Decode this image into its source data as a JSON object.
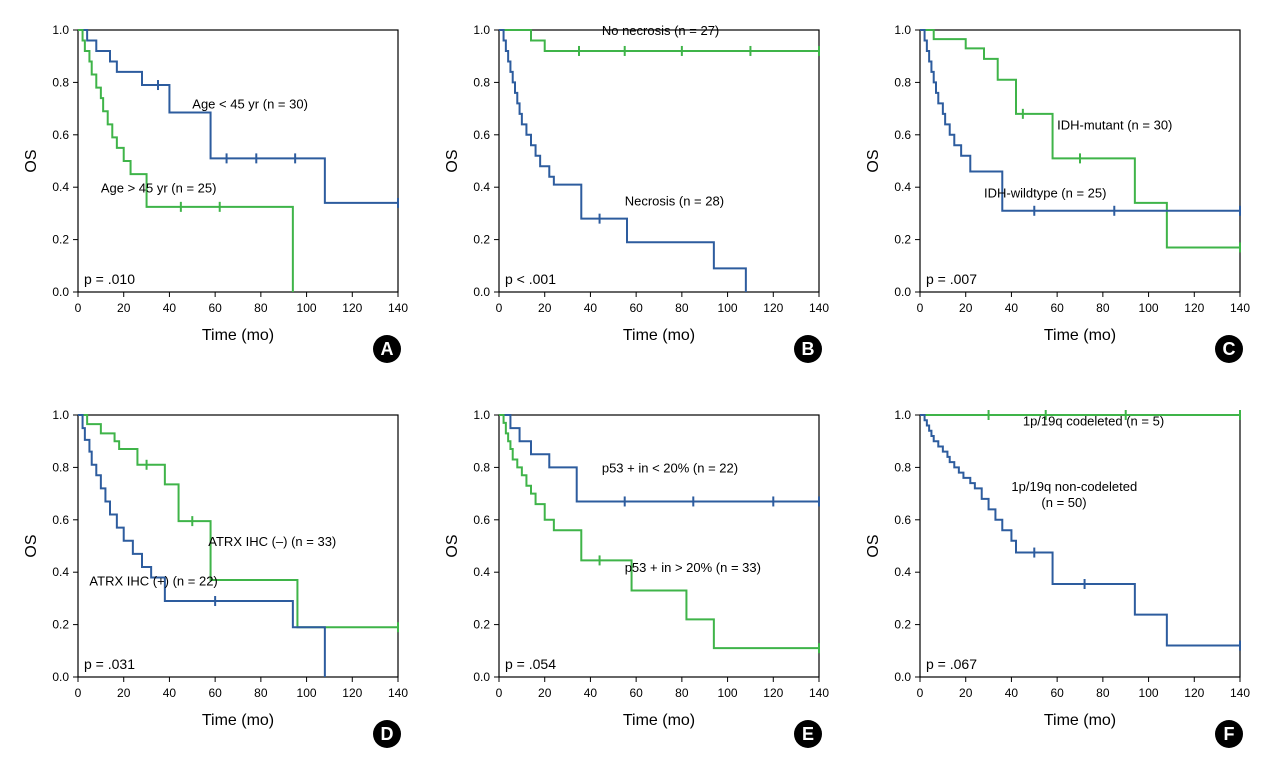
{
  "global": {
    "ylabel": "OS",
    "xlabel": "Time (mo)",
    "ylim": [
      0,
      1.0
    ],
    "ytick_step": 0.2,
    "plot_bg": "#ffffff",
    "axis_color": "#000000",
    "border_color": "#000000",
    "font_size_axis": 14,
    "font_size_tick": 12,
    "font_size_label": 13,
    "font_size_pvalue": 14,
    "line_width": 2,
    "colors": {
      "blue": "#2d5c9e",
      "green": "#3fb449"
    }
  },
  "panels": [
    {
      "id": "A",
      "xlim": [
        0,
        140
      ],
      "xtick_step": 20,
      "pvalue": "p = .010",
      "series": [
        {
          "label": "Age < 45 yr (n = 30)",
          "color": "#2d5c9e",
          "label_x": 50,
          "label_y": 0.7,
          "points": [
            [
              0,
              1.0
            ],
            [
              3,
              1.0
            ],
            [
              4,
              0.96
            ],
            [
              7,
              0.96
            ],
            [
              8,
              0.92
            ],
            [
              12,
              0.92
            ],
            [
              14,
              0.88
            ],
            [
              16,
              0.88
            ],
            [
              17,
              0.84
            ],
            [
              25,
              0.84
            ],
            [
              28,
              0.79
            ],
            [
              38,
              0.79
            ],
            [
              40,
              0.685
            ],
            [
              55,
              0.685
            ],
            [
              58,
              0.51
            ],
            [
              106,
              0.51
            ],
            [
              108,
              0.34
            ],
            [
              140,
              0.34
            ]
          ],
          "censors": [
            [
              35,
              0.79
            ],
            [
              65,
              0.51
            ],
            [
              78,
              0.51
            ],
            [
              95,
              0.51
            ],
            [
              140,
              0.34
            ]
          ]
        },
        {
          "label": "Age > 45 yr (n = 25)",
          "color": "#3fb449",
          "label_x": 10,
          "label_y": 0.38,
          "points": [
            [
              0,
              1.0
            ],
            [
              2,
              0.96
            ],
            [
              3,
              0.92
            ],
            [
              5,
              0.88
            ],
            [
              6,
              0.83
            ],
            [
              8,
              0.78
            ],
            [
              10,
              0.74
            ],
            [
              11,
              0.69
            ],
            [
              13,
              0.64
            ],
            [
              15,
              0.59
            ],
            [
              17,
              0.55
            ],
            [
              20,
              0.5
            ],
            [
              23,
              0.45
            ],
            [
              28,
              0.45
            ],
            [
              30,
              0.325
            ],
            [
              92,
              0.325
            ],
            [
              94,
              0.0
            ]
          ],
          "censors": [
            [
              45,
              0.325
            ],
            [
              62,
              0.325
            ]
          ]
        }
      ]
    },
    {
      "id": "B",
      "xlim": [
        0,
        140
      ],
      "xtick_step": 20,
      "pvalue": "p < .001",
      "series": [
        {
          "label": "No necrosis (n = 27)",
          "color": "#3fb449",
          "label_x": 45,
          "label_y": 0.98,
          "points": [
            [
              0,
              1.0
            ],
            [
              12,
              1.0
            ],
            [
              14,
              0.96
            ],
            [
              18,
              0.96
            ],
            [
              20,
              0.92
            ],
            [
              140,
              0.92
            ]
          ],
          "censors": [
            [
              35,
              0.92
            ],
            [
              55,
              0.92
            ],
            [
              80,
              0.92
            ],
            [
              110,
              0.92
            ],
            [
              140,
              0.92
            ]
          ]
        },
        {
          "label": "Necrosis (n = 28)",
          "color": "#2d5c9e",
          "label_x": 55,
          "label_y": 0.33,
          "points": [
            [
              0,
              1.0
            ],
            [
              2,
              0.96
            ],
            [
              3,
              0.92
            ],
            [
              4,
              0.88
            ],
            [
              5,
              0.84
            ],
            [
              6,
              0.8
            ],
            [
              7,
              0.76
            ],
            [
              8,
              0.72
            ],
            [
              9,
              0.68
            ],
            [
              10,
              0.64
            ],
            [
              12,
              0.6
            ],
            [
              14,
              0.56
            ],
            [
              16,
              0.52
            ],
            [
              18,
              0.48
            ],
            [
              22,
              0.44
            ],
            [
              24,
              0.41
            ],
            [
              32,
              0.41
            ],
            [
              36,
              0.28
            ],
            [
              55,
              0.28
            ],
            [
              56,
              0.19
            ],
            [
              92,
              0.19
            ],
            [
              94,
              0.09
            ],
            [
              106,
              0.09
            ],
            [
              108,
              0.0
            ]
          ],
          "censors": [
            [
              44,
              0.28
            ]
          ]
        }
      ]
    },
    {
      "id": "C",
      "xlim": [
        0,
        140
      ],
      "xtick_step": 20,
      "pvalue": "p = .007",
      "series": [
        {
          "label": "IDH-mutant (n = 30)",
          "color": "#3fb449",
          "label_x": 60,
          "label_y": 0.62,
          "points": [
            [
              0,
              1.0
            ],
            [
              4,
              1.0
            ],
            [
              6,
              0.965
            ],
            [
              18,
              0.965
            ],
            [
              20,
              0.93
            ],
            [
              26,
              0.93
            ],
            [
              28,
              0.89
            ],
            [
              32,
              0.89
            ],
            [
              34,
              0.81
            ],
            [
              40,
              0.81
            ],
            [
              42,
              0.68
            ],
            [
              56,
              0.68
            ],
            [
              58,
              0.51
            ],
            [
              92,
              0.51
            ],
            [
              94,
              0.34
            ],
            [
              106,
              0.34
            ],
            [
              108,
              0.17
            ],
            [
              140,
              0.17
            ]
          ],
          "censors": [
            [
              45,
              0.68
            ],
            [
              70,
              0.51
            ],
            [
              140,
              0.17
            ]
          ]
        },
        {
          "label": "IDH-wildtype (n = 25)",
          "color": "#2d5c9e",
          "label_x": 28,
          "label_y": 0.36,
          "points": [
            [
              0,
              1.0
            ],
            [
              2,
              0.96
            ],
            [
              3,
              0.92
            ],
            [
              4,
              0.88
            ],
            [
              5,
              0.84
            ],
            [
              6,
              0.8
            ],
            [
              7,
              0.76
            ],
            [
              8,
              0.72
            ],
            [
              10,
              0.68
            ],
            [
              11,
              0.64
            ],
            [
              13,
              0.6
            ],
            [
              15,
              0.56
            ],
            [
              18,
              0.52
            ],
            [
              22,
              0.46
            ],
            [
              32,
              0.46
            ],
            [
              36,
              0.31
            ],
            [
              140,
              0.31
            ]
          ],
          "censors": [
            [
              50,
              0.31
            ],
            [
              85,
              0.31
            ],
            [
              140,
              0.31
            ]
          ]
        }
      ]
    },
    {
      "id": "D",
      "xlim": [
        0,
        140
      ],
      "xtick_step": 20,
      "pvalue": "p = .031",
      "series": [
        {
          "label": "ATRX IHC (–) (n = 33)",
          "color": "#3fb449",
          "label_x": 57,
          "label_y": 0.5,
          "points": [
            [
              0,
              1.0
            ],
            [
              3,
              1.0
            ],
            [
              4,
              0.965
            ],
            [
              8,
              0.965
            ],
            [
              10,
              0.93
            ],
            [
              14,
              0.93
            ],
            [
              16,
              0.9
            ],
            [
              18,
              0.87
            ],
            [
              24,
              0.87
            ],
            [
              26,
              0.81
            ],
            [
              36,
              0.81
            ],
            [
              38,
              0.735
            ],
            [
              42,
              0.735
            ],
            [
              44,
              0.595
            ],
            [
              56,
              0.595
            ],
            [
              58,
              0.37
            ],
            [
              94,
              0.37
            ],
            [
              96,
              0.19
            ],
            [
              140,
              0.19
            ]
          ],
          "censors": [
            [
              30,
              0.81
            ],
            [
              50,
              0.595
            ],
            [
              140,
              0.19
            ]
          ]
        },
        {
          "label": "ATRX IHC (+) (n = 22)",
          "color": "#2d5c9e",
          "label_x": 5,
          "label_y": 0.35,
          "points": [
            [
              0,
              1.0
            ],
            [
              2,
              0.95
            ],
            [
              3,
              0.905
            ],
            [
              5,
              0.86
            ],
            [
              6,
              0.81
            ],
            [
              8,
              0.77
            ],
            [
              10,
              0.72
            ],
            [
              12,
              0.67
            ],
            [
              14,
              0.62
            ],
            [
              17,
              0.57
            ],
            [
              20,
              0.52
            ],
            [
              24,
              0.47
            ],
            [
              28,
              0.42
            ],
            [
              32,
              0.38
            ],
            [
              36,
              0.38
            ],
            [
              38,
              0.29
            ],
            [
              92,
              0.29
            ],
            [
              94,
              0.19
            ],
            [
              106,
              0.19
            ],
            [
              108,
              0.0
            ]
          ],
          "censors": [
            [
              60,
              0.29
            ]
          ]
        }
      ]
    },
    {
      "id": "E",
      "xlim": [
        0,
        140
      ],
      "xtick_step": 20,
      "pvalue": "p = .054",
      "series": [
        {
          "label": "p53 + in < 20% (n = 22)",
          "color": "#2d5c9e",
          "label_x": 45,
          "label_y": 0.78,
          "points": [
            [
              0,
              1.0
            ],
            [
              4,
              1.0
            ],
            [
              5,
              0.95
            ],
            [
              8,
              0.95
            ],
            [
              9,
              0.9
            ],
            [
              13,
              0.9
            ],
            [
              14,
              0.85
            ],
            [
              20,
              0.85
            ],
            [
              22,
              0.8
            ],
            [
              32,
              0.8
            ],
            [
              34,
              0.67
            ],
            [
              140,
              0.67
            ]
          ],
          "censors": [
            [
              55,
              0.67
            ],
            [
              85,
              0.67
            ],
            [
              120,
              0.67
            ],
            [
              140,
              0.67
            ]
          ]
        },
        {
          "label": "p53 + in > 20% (n = 33)",
          "color": "#3fb449",
          "label_x": 55,
          "label_y": 0.4,
          "points": [
            [
              0,
              1.0
            ],
            [
              2,
              0.97
            ],
            [
              3,
              0.93
            ],
            [
              4,
              0.9
            ],
            [
              5,
              0.87
            ],
            [
              6,
              0.83
            ],
            [
              8,
              0.8
            ],
            [
              10,
              0.77
            ],
            [
              12,
              0.73
            ],
            [
              14,
              0.7
            ],
            [
              16,
              0.66
            ],
            [
              20,
              0.6
            ],
            [
              24,
              0.56
            ],
            [
              34,
              0.56
            ],
            [
              36,
              0.445
            ],
            [
              56,
              0.445
            ],
            [
              58,
              0.33
            ],
            [
              80,
              0.33
            ],
            [
              82,
              0.22
            ],
            [
              92,
              0.22
            ],
            [
              94,
              0.11
            ],
            [
              140,
              0.11
            ]
          ],
          "censors": [
            [
              44,
              0.445
            ],
            [
              140,
              0.11
            ]
          ]
        }
      ]
    },
    {
      "id": "F",
      "xlim": [
        0,
        140
      ],
      "xtick_step": 20,
      "pvalue": "p = .067",
      "series": [
        {
          "label": "1p/19q codeleted (n = 5)",
          "color": "#3fb449",
          "label_x": 45,
          "label_y": 0.96,
          "points": [
            [
              0,
              1.0
            ],
            [
              140,
              1.0
            ]
          ],
          "censors": [
            [
              30,
              1.0
            ],
            [
              55,
              1.0
            ],
            [
              90,
              1.0
            ],
            [
              140,
              1.0
            ]
          ]
        },
        {
          "label": "1p/19q non-codeleted",
          "label2": "(n = 50)",
          "color": "#2d5c9e",
          "label_x": 40,
          "label_y": 0.71,
          "points": [
            [
              0,
              1.0
            ],
            [
              2,
              0.98
            ],
            [
              3,
              0.96
            ],
            [
              4,
              0.94
            ],
            [
              5,
              0.92
            ],
            [
              6,
              0.9
            ],
            [
              8,
              0.88
            ],
            [
              10,
              0.86
            ],
            [
              12,
              0.84
            ],
            [
              13,
              0.82
            ],
            [
              15,
              0.8
            ],
            [
              17,
              0.78
            ],
            [
              19,
              0.76
            ],
            [
              22,
              0.74
            ],
            [
              24,
              0.72
            ],
            [
              27,
              0.68
            ],
            [
              30,
              0.64
            ],
            [
              33,
              0.6
            ],
            [
              36,
              0.56
            ],
            [
              40,
              0.52
            ],
            [
              42,
              0.475
            ],
            [
              56,
              0.475
            ],
            [
              58,
              0.355
            ],
            [
              92,
              0.355
            ],
            [
              94,
              0.238
            ],
            [
              106,
              0.238
            ],
            [
              108,
              0.12
            ],
            [
              140,
              0.12
            ]
          ],
          "censors": [
            [
              50,
              0.475
            ],
            [
              72,
              0.355
            ],
            [
              140,
              0.12
            ]
          ]
        }
      ]
    }
  ]
}
